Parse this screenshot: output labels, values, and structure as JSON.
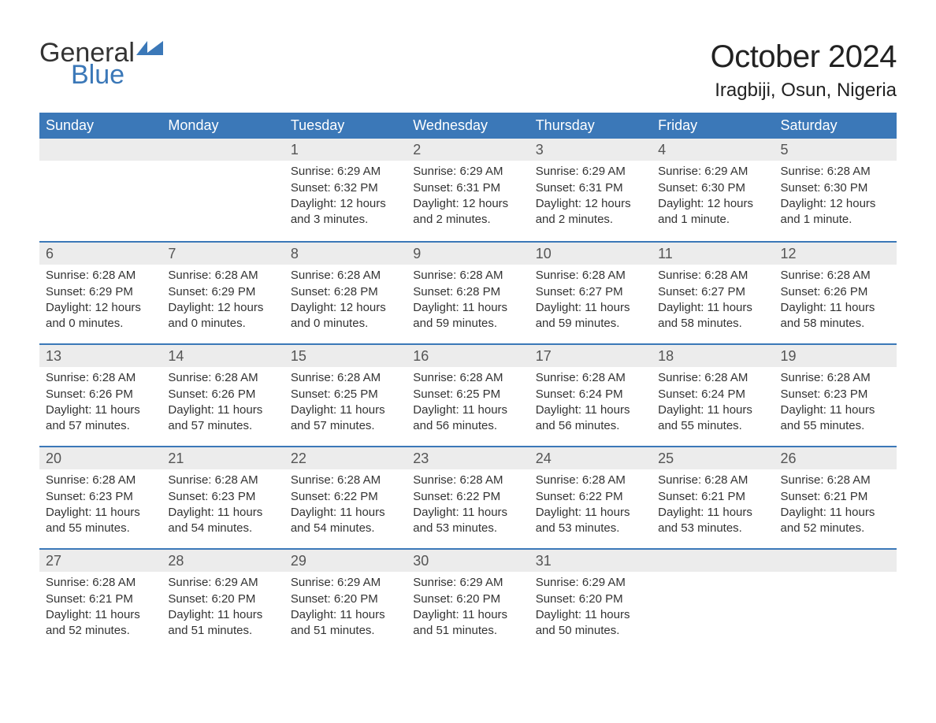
{
  "logo": {
    "word1": "General",
    "word2": "Blue",
    "accent_color": "#3b78b8"
  },
  "title": "October 2024",
  "location": "Iragbiji, Osun, Nigeria",
  "colors": {
    "header_bg": "#3b78b8",
    "header_text": "#ffffff",
    "daynum_bg": "#ececec",
    "border": "#3b78b8",
    "text": "#333333",
    "background": "#ffffff"
  },
  "labels": {
    "sunrise": "Sunrise:",
    "sunset": "Sunset:",
    "daylight": "Daylight:"
  },
  "weekdays": [
    "Sunday",
    "Monday",
    "Tuesday",
    "Wednesday",
    "Thursday",
    "Friday",
    "Saturday"
  ],
  "weeks": [
    [
      null,
      null,
      {
        "n": "1",
        "sunrise": "6:29 AM",
        "sunset": "6:32 PM",
        "daylight": "12 hours and 3 minutes."
      },
      {
        "n": "2",
        "sunrise": "6:29 AM",
        "sunset": "6:31 PM",
        "daylight": "12 hours and 2 minutes."
      },
      {
        "n": "3",
        "sunrise": "6:29 AM",
        "sunset": "6:31 PM",
        "daylight": "12 hours and 2 minutes."
      },
      {
        "n": "4",
        "sunrise": "6:29 AM",
        "sunset": "6:30 PM",
        "daylight": "12 hours and 1 minute."
      },
      {
        "n": "5",
        "sunrise": "6:28 AM",
        "sunset": "6:30 PM",
        "daylight": "12 hours and 1 minute."
      }
    ],
    [
      {
        "n": "6",
        "sunrise": "6:28 AM",
        "sunset": "6:29 PM",
        "daylight": "12 hours and 0 minutes."
      },
      {
        "n": "7",
        "sunrise": "6:28 AM",
        "sunset": "6:29 PM",
        "daylight": "12 hours and 0 minutes."
      },
      {
        "n": "8",
        "sunrise": "6:28 AM",
        "sunset": "6:28 PM",
        "daylight": "12 hours and 0 minutes."
      },
      {
        "n": "9",
        "sunrise": "6:28 AM",
        "sunset": "6:28 PM",
        "daylight": "11 hours and 59 minutes."
      },
      {
        "n": "10",
        "sunrise": "6:28 AM",
        "sunset": "6:27 PM",
        "daylight": "11 hours and 59 minutes."
      },
      {
        "n": "11",
        "sunrise": "6:28 AM",
        "sunset": "6:27 PM",
        "daylight": "11 hours and 58 minutes."
      },
      {
        "n": "12",
        "sunrise": "6:28 AM",
        "sunset": "6:26 PM",
        "daylight": "11 hours and 58 minutes."
      }
    ],
    [
      {
        "n": "13",
        "sunrise": "6:28 AM",
        "sunset": "6:26 PM",
        "daylight": "11 hours and 57 minutes."
      },
      {
        "n": "14",
        "sunrise": "6:28 AM",
        "sunset": "6:26 PM",
        "daylight": "11 hours and 57 minutes."
      },
      {
        "n": "15",
        "sunrise": "6:28 AM",
        "sunset": "6:25 PM",
        "daylight": "11 hours and 57 minutes."
      },
      {
        "n": "16",
        "sunrise": "6:28 AM",
        "sunset": "6:25 PM",
        "daylight": "11 hours and 56 minutes."
      },
      {
        "n": "17",
        "sunrise": "6:28 AM",
        "sunset": "6:24 PM",
        "daylight": "11 hours and 56 minutes."
      },
      {
        "n": "18",
        "sunrise": "6:28 AM",
        "sunset": "6:24 PM",
        "daylight": "11 hours and 55 minutes."
      },
      {
        "n": "19",
        "sunrise": "6:28 AM",
        "sunset": "6:23 PM",
        "daylight": "11 hours and 55 minutes."
      }
    ],
    [
      {
        "n": "20",
        "sunrise": "6:28 AM",
        "sunset": "6:23 PM",
        "daylight": "11 hours and 55 minutes."
      },
      {
        "n": "21",
        "sunrise": "6:28 AM",
        "sunset": "6:23 PM",
        "daylight": "11 hours and 54 minutes."
      },
      {
        "n": "22",
        "sunrise": "6:28 AM",
        "sunset": "6:22 PM",
        "daylight": "11 hours and 54 minutes."
      },
      {
        "n": "23",
        "sunrise": "6:28 AM",
        "sunset": "6:22 PM",
        "daylight": "11 hours and 53 minutes."
      },
      {
        "n": "24",
        "sunrise": "6:28 AM",
        "sunset": "6:22 PM",
        "daylight": "11 hours and 53 minutes."
      },
      {
        "n": "25",
        "sunrise": "6:28 AM",
        "sunset": "6:21 PM",
        "daylight": "11 hours and 53 minutes."
      },
      {
        "n": "26",
        "sunrise": "6:28 AM",
        "sunset": "6:21 PM",
        "daylight": "11 hours and 52 minutes."
      }
    ],
    [
      {
        "n": "27",
        "sunrise": "6:28 AM",
        "sunset": "6:21 PM",
        "daylight": "11 hours and 52 minutes."
      },
      {
        "n": "28",
        "sunrise": "6:29 AM",
        "sunset": "6:20 PM",
        "daylight": "11 hours and 51 minutes."
      },
      {
        "n": "29",
        "sunrise": "6:29 AM",
        "sunset": "6:20 PM",
        "daylight": "11 hours and 51 minutes."
      },
      {
        "n": "30",
        "sunrise": "6:29 AM",
        "sunset": "6:20 PM",
        "daylight": "11 hours and 51 minutes."
      },
      {
        "n": "31",
        "sunrise": "6:29 AM",
        "sunset": "6:20 PM",
        "daylight": "11 hours and 50 minutes."
      },
      null,
      null
    ]
  ]
}
